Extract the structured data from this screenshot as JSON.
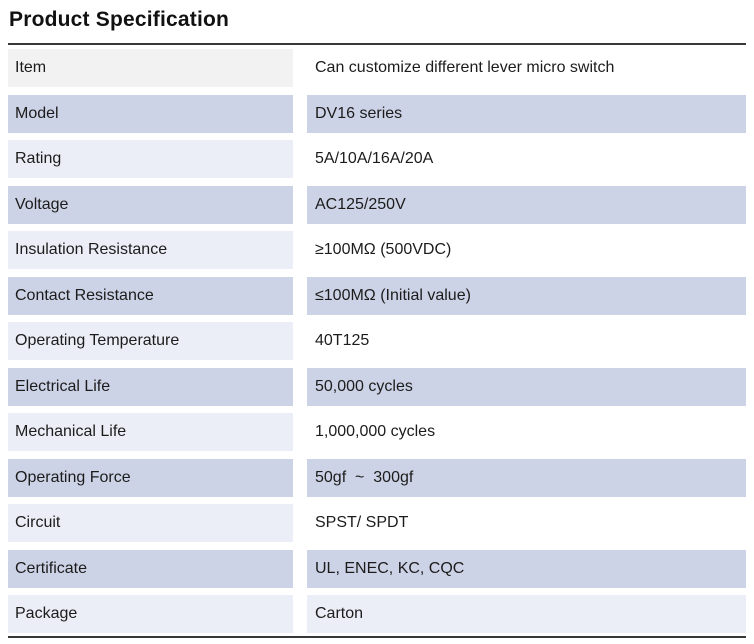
{
  "page": {
    "title": "Product Specification"
  },
  "colors": {
    "row_lavender": "#cdd3e6",
    "row_light_tint": "#ebeef6",
    "header_label_gray": "#f2f2f2",
    "row_white": "#ffffff",
    "table_border": "#383838",
    "text": "#1c1c1c"
  },
  "table": {
    "rows": [
      {
        "label": "Item",
        "value": "Can customize different lever micro switch",
        "left_bg": "#f2f2f2",
        "right_bg": "#ffffff"
      },
      {
        "label": "Model",
        "value": "DV16 series",
        "left_bg": "#cdd3e6",
        "right_bg": "#cdd3e6"
      },
      {
        "label": "Rating",
        "value": "5A/10A/16A/20A",
        "left_bg": "#ebeef6",
        "right_bg": "#ffffff"
      },
      {
        "label": "Voltage",
        "value": "AC125/250V",
        "left_bg": "#cdd3e6",
        "right_bg": "#cdd3e6"
      },
      {
        "label": "Insulation Resistance",
        "value": "≥100MΩ (500VDC)",
        "left_bg": "#ebeef6",
        "right_bg": "#ffffff"
      },
      {
        "label": "Contact Resistance",
        "value": "≤100MΩ (Initial value)",
        "left_bg": "#cdd3e6",
        "right_bg": "#cdd3e6"
      },
      {
        "label": "Operating Temperature",
        "value": "40T125",
        "left_bg": "#ebeef6",
        "right_bg": "#ffffff"
      },
      {
        "label": "Electrical Life",
        "value": "50,000 cycles",
        "left_bg": "#cdd3e6",
        "right_bg": "#cdd3e6"
      },
      {
        "label": "Mechanical Life",
        "value": "1,000,000 cycles",
        "left_bg": "#ebeef6",
        "right_bg": "#ffffff"
      },
      {
        "label": "Operating Force",
        "value": "50gf  ~  300gf",
        "left_bg": "#cdd3e6",
        "right_bg": "#cdd3e6"
      },
      {
        "label": "Circuit",
        "value": "SPST/ SPDT",
        "left_bg": "#ebeef6",
        "right_bg": "#ffffff"
      },
      {
        "label": "Certificate",
        "value": "UL, ENEC, KC, CQC",
        "left_bg": "#cdd3e6",
        "right_bg": "#cdd3e6"
      },
      {
        "label": "Package",
        "value": "Carton",
        "left_bg": "#ebeef6",
        "right_bg": "#ebeef6"
      }
    ]
  }
}
